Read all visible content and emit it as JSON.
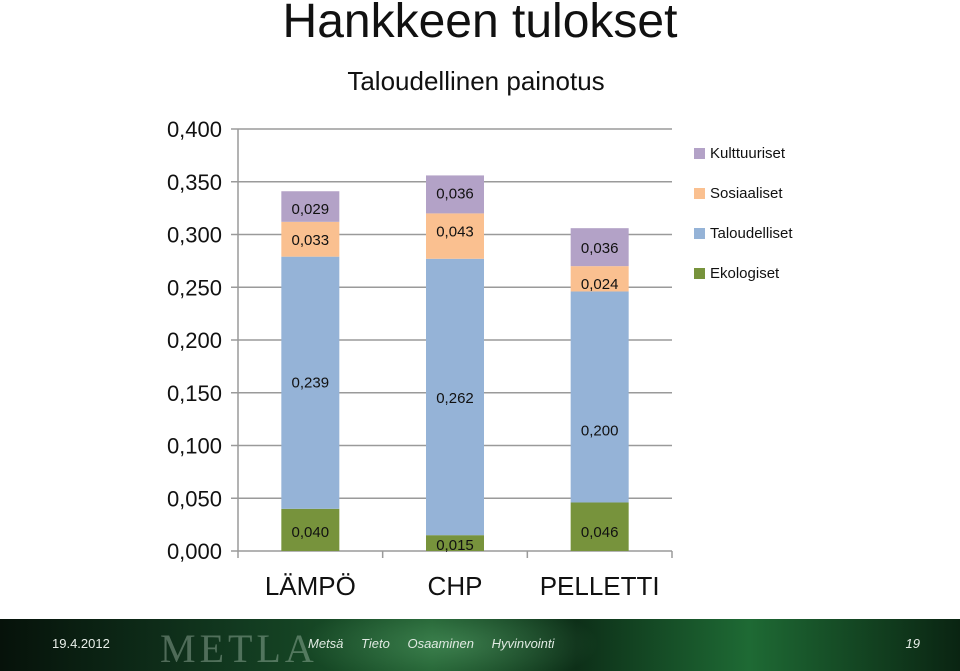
{
  "slide": {
    "title": "Hankkeen tulokset"
  },
  "chart_data": {
    "type": "bar",
    "stacked": true,
    "title": "Taloudellinen painotus",
    "categories": [
      "LÄMPÖ",
      "CHP",
      "PELLETTI"
    ],
    "series": [
      {
        "name": "Ekologiset",
        "values": [
          0.04,
          0.015,
          0.046
        ],
        "labels": [
          "0,040",
          "0,015",
          "0,046"
        ],
        "color": "#77933C"
      },
      {
        "name": "Taloudelliset",
        "values": [
          0.239,
          0.262,
          0.2
        ],
        "labels": [
          "0,239",
          "0,262",
          "0,200"
        ],
        "color": "#95B3D7"
      },
      {
        "name": "Sosiaaliset",
        "values": [
          0.033,
          0.043,
          0.024
        ],
        "labels": [
          "0,033",
          "0,043",
          "0,024"
        ],
        "color": "#FAC090"
      },
      {
        "name": "Kulttuuriset",
        "values": [
          0.029,
          0.036,
          0.036
        ],
        "labels": [
          "0,029",
          "0,036",
          "0,036"
        ],
        "color": "#B3A2C7"
      }
    ],
    "ylim": [
      0,
      0.4
    ],
    "yticks": [
      "0,000",
      "0,050",
      "0,100",
      "0,150",
      "0,200",
      "0,250",
      "0,300",
      "0,350",
      "0,400"
    ],
    "grid": true,
    "legend": "top-right",
    "legend_order": [
      "Kulttuuriset",
      "Sosiaaliset",
      "Taloudelliset",
      "Ekologiset"
    ]
  },
  "footer": {
    "date": "19.4.2012",
    "logo": "METLA",
    "tags": [
      "Metsä",
      "Tieto",
      "Osaaminen",
      "Hyvinvointi"
    ],
    "page": "19"
  }
}
